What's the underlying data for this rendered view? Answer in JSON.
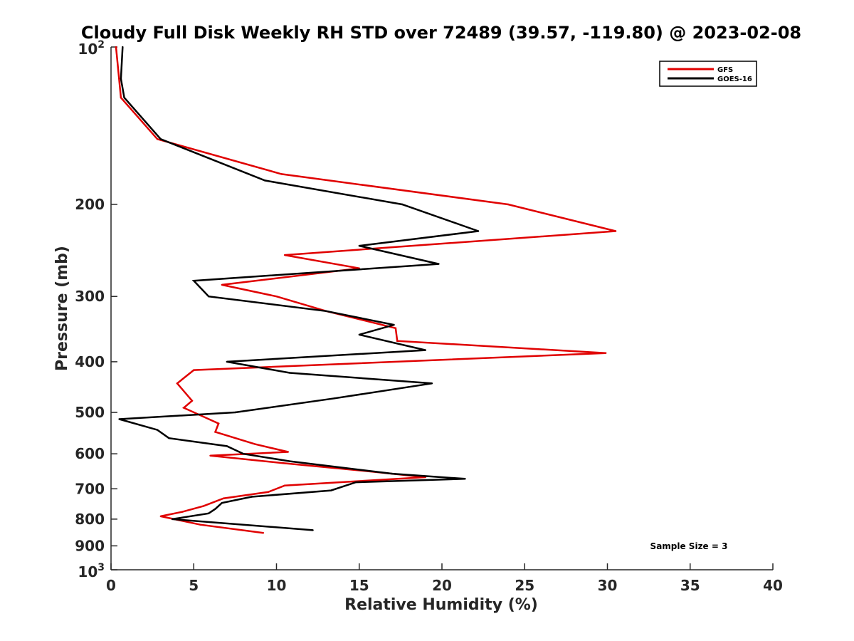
{
  "chart_data": {
    "type": "line",
    "title": "Cloudy Full Disk Weekly RH STD over 72489 (39.57, -119.80) @ 2023-02-08",
    "xlabel": "Relative Humidity (%)",
    "ylabel": "Pressure (mb)",
    "xlim": [
      0,
      40
    ],
    "ylim": [
      100,
      1000
    ],
    "y_scale": "log",
    "y_reversed": true,
    "x_ticks": [
      0,
      5,
      10,
      15,
      20,
      25,
      30,
      35,
      40
    ],
    "x_tick_labels": [
      "0",
      "5",
      "10",
      "15",
      "20",
      "25",
      "30",
      "35",
      "40"
    ],
    "y_ticks": [
      200,
      300,
      400,
      500,
      600,
      700,
      800,
      900
    ],
    "y_tick_labels": [
      "200",
      "300",
      "400",
      "500",
      "600",
      "700",
      "800",
      "900"
    ],
    "y_special_ticks": [
      {
        "value": 100,
        "base": "10",
        "exp": "2"
      },
      {
        "value": 1000,
        "base": "10",
        "exp": "3"
      }
    ],
    "legend_position": "top-right",
    "grid": false,
    "annotation": "Sample Size = 3",
    "series": [
      {
        "name": "GFS",
        "color": "#e00000",
        "points": [
          [
            0.3,
            100
          ],
          [
            0.6,
            125
          ],
          [
            2.8,
            150
          ],
          [
            10.3,
            175
          ],
          [
            24.0,
            200
          ],
          [
            30.5,
            225
          ],
          [
            10.5,
            250
          ],
          [
            15.0,
            265
          ],
          [
            6.7,
            285
          ],
          [
            10.0,
            300
          ],
          [
            13.0,
            320
          ],
          [
            17.2,
            345
          ],
          [
            17.3,
            365
          ],
          [
            29.9,
            385
          ],
          [
            5.0,
            415
          ],
          [
            4.0,
            440
          ],
          [
            4.9,
            475
          ],
          [
            4.4,
            490
          ],
          [
            6.5,
            525
          ],
          [
            6.3,
            545
          ],
          [
            8.7,
            575
          ],
          [
            10.7,
            595
          ],
          [
            6.0,
            605
          ],
          [
            10.4,
            625
          ],
          [
            16.0,
            650
          ],
          [
            19.0,
            665
          ],
          [
            10.5,
            690
          ],
          [
            9.5,
            710
          ],
          [
            6.8,
            730
          ],
          [
            5.6,
            755
          ],
          [
            4.3,
            775
          ],
          [
            3.0,
            790
          ],
          [
            5.4,
            820
          ],
          [
            9.2,
            850
          ]
        ]
      },
      {
        "name": "GOES-16",
        "color": "#000000",
        "points": [
          [
            0.7,
            100
          ],
          [
            0.6,
            115
          ],
          [
            0.8,
            125
          ],
          [
            3.0,
            150
          ],
          [
            9.3,
            180
          ],
          [
            17.6,
            200
          ],
          [
            22.2,
            225
          ],
          [
            15.0,
            240
          ],
          [
            19.8,
            260
          ],
          [
            5.0,
            280
          ],
          [
            5.9,
            300
          ],
          [
            13.0,
            320
          ],
          [
            17.1,
            340
          ],
          [
            15.0,
            355
          ],
          [
            19.0,
            380
          ],
          [
            7.0,
            400
          ],
          [
            10.8,
            420
          ],
          [
            19.4,
            440
          ],
          [
            13.5,
            470
          ],
          [
            7.5,
            500
          ],
          [
            0.5,
            515
          ],
          [
            2.8,
            540
          ],
          [
            3.5,
            560
          ],
          [
            7.0,
            580
          ],
          [
            8.0,
            600
          ],
          [
            10.8,
            620
          ],
          [
            17.0,
            655
          ],
          [
            21.4,
            670
          ],
          [
            14.8,
            680
          ],
          [
            13.3,
            705
          ],
          [
            8.5,
            725
          ],
          [
            6.7,
            745
          ],
          [
            6.3,
            765
          ],
          [
            5.9,
            780
          ],
          [
            3.7,
            800
          ],
          [
            12.2,
            840
          ]
        ]
      }
    ]
  }
}
